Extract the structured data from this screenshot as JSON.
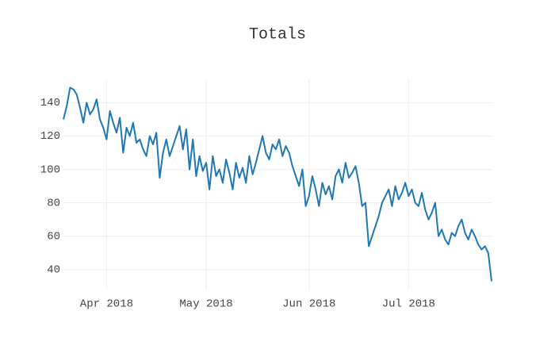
{
  "chart_data": {
    "type": "line",
    "title": "Totals",
    "x": [
      "2018-03-19",
      "2018-03-20",
      "2018-03-21",
      "2018-03-22",
      "2018-03-23",
      "2018-03-24",
      "2018-03-25",
      "2018-03-26",
      "2018-03-27",
      "2018-03-28",
      "2018-03-29",
      "2018-03-30",
      "2018-03-31",
      "2018-04-01",
      "2018-04-02",
      "2018-04-03",
      "2018-04-04",
      "2018-04-05",
      "2018-04-06",
      "2018-04-07",
      "2018-04-08",
      "2018-04-09",
      "2018-04-10",
      "2018-04-11",
      "2018-04-12",
      "2018-04-13",
      "2018-04-14",
      "2018-04-15",
      "2018-04-16",
      "2018-04-17",
      "2018-04-18",
      "2018-04-19",
      "2018-04-20",
      "2018-04-21",
      "2018-04-22",
      "2018-04-23",
      "2018-04-24",
      "2018-04-25",
      "2018-04-26",
      "2018-04-27",
      "2018-04-28",
      "2018-04-29",
      "2018-04-30",
      "2018-05-01",
      "2018-05-02",
      "2018-05-03",
      "2018-05-04",
      "2018-05-05",
      "2018-05-06",
      "2018-05-07",
      "2018-05-08",
      "2018-05-09",
      "2018-05-10",
      "2018-05-11",
      "2018-05-12",
      "2018-05-13",
      "2018-05-14",
      "2018-05-15",
      "2018-05-16",
      "2018-05-17",
      "2018-05-18",
      "2018-05-19",
      "2018-05-20",
      "2018-05-21",
      "2018-05-22",
      "2018-05-23",
      "2018-05-24",
      "2018-05-25",
      "2018-05-26",
      "2018-05-27",
      "2018-05-28",
      "2018-05-29",
      "2018-05-30",
      "2018-05-31",
      "2018-06-01",
      "2018-06-02",
      "2018-06-03",
      "2018-06-04",
      "2018-06-05",
      "2018-06-06",
      "2018-06-07",
      "2018-06-08",
      "2018-06-09",
      "2018-06-10",
      "2018-06-11",
      "2018-06-12",
      "2018-06-13",
      "2018-06-14",
      "2018-06-15",
      "2018-06-16",
      "2018-06-17",
      "2018-06-18",
      "2018-06-19",
      "2018-06-20",
      "2018-06-21",
      "2018-06-22",
      "2018-06-23",
      "2018-06-24",
      "2018-06-25",
      "2018-06-26",
      "2018-06-27",
      "2018-06-28",
      "2018-06-29",
      "2018-06-30",
      "2018-07-01",
      "2018-07-02",
      "2018-07-03",
      "2018-07-04",
      "2018-07-05",
      "2018-07-06",
      "2018-07-07",
      "2018-07-08",
      "2018-07-09",
      "2018-07-10",
      "2018-07-11",
      "2018-07-12",
      "2018-07-13",
      "2018-07-14",
      "2018-07-15",
      "2018-07-16",
      "2018-07-17",
      "2018-07-18",
      "2018-07-19",
      "2018-07-20",
      "2018-07-21",
      "2018-07-22",
      "2018-07-23",
      "2018-07-24",
      "2018-07-25",
      "2018-07-26"
    ],
    "values": [
      130,
      138,
      149,
      148,
      145,
      137,
      128,
      140,
      133,
      136,
      142,
      130,
      125,
      118,
      135,
      128,
      122,
      131,
      110,
      125,
      120,
      128,
      116,
      118,
      112,
      108,
      120,
      115,
      122,
      95,
      110,
      118,
      108,
      114,
      120,
      126,
      112,
      124,
      100,
      118,
      96,
      108,
      99,
      104,
      88,
      108,
      96,
      100,
      92,
      106,
      98,
      88,
      104,
      95,
      101,
      92,
      108,
      97,
      104,
      112,
      120,
      110,
      106,
      115,
      112,
      118,
      108,
      114,
      110,
      102,
      96,
      90,
      100,
      78,
      84,
      96,
      88,
      78,
      92,
      85,
      90,
      82,
      96,
      100,
      92,
      104,
      95,
      98,
      102,
      92,
      78,
      80,
      54,
      60,
      66,
      72,
      80,
      84,
      88,
      78,
      90,
      82,
      86,
      92,
      84,
      88,
      80,
      78,
      86,
      76,
      70,
      74,
      80,
      60,
      64,
      58,
      55,
      62,
      60,
      66,
      70,
      62,
      58,
      64,
      60,
      55,
      52,
      54,
      50,
      33
    ],
    "color": "#1f77b4",
    "xlim": [
      "2018-03-19",
      "2018-07-26"
    ],
    "xticks": [
      {
        "value": "2018-04-01",
        "label": "Apr 2018"
      },
      {
        "value": "2018-05-01",
        "label": "May 2018"
      },
      {
        "value": "2018-06-01",
        "label": "Jun 2018"
      },
      {
        "value": "2018-07-01",
        "label": "Jul 2018"
      }
    ],
    "ylim": [
      28,
      154
    ],
    "yticks": [
      40,
      60,
      80,
      100,
      120,
      140
    ],
    "grid": true
  }
}
